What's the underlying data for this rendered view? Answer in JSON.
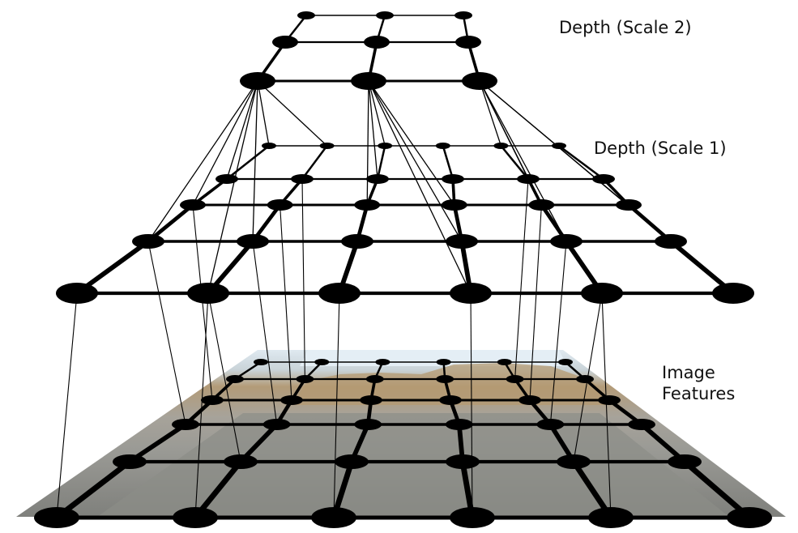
{
  "labels": {
    "depth_scale_2": "Depth (Scale 2)",
    "depth_scale_1": "Depth (Scale 1)",
    "image_features_line1": "Image",
    "image_features_line2": "Features"
  },
  "layers": [
    {
      "id": "depth-scale-2",
      "rows": 3,
      "cols": 3
    },
    {
      "id": "depth-scale-1",
      "rows": 5,
      "cols": 6
    },
    {
      "id": "image-features",
      "rows": 7,
      "cols": 6
    }
  ],
  "colors": {
    "grid": "#000000",
    "background": "#ffffff",
    "road": "#8f8f8a",
    "sky": "#dce8f1",
    "hills": "#b49a72"
  }
}
